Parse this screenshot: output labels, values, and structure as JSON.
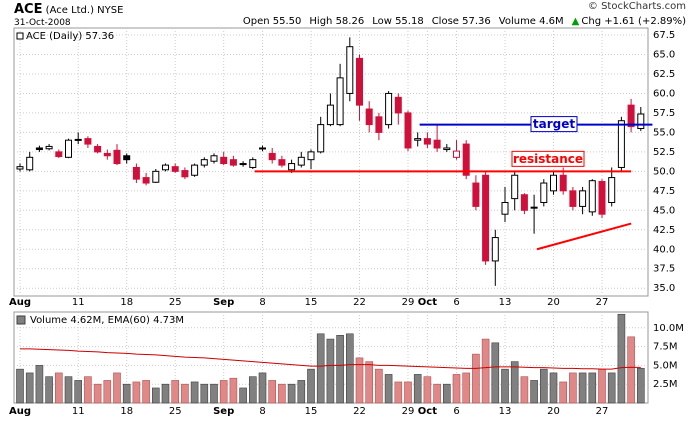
{
  "header": {
    "symbol": "ACE",
    "name": "(Ace Ltd.) NYSE",
    "date": "31-Oct-2008",
    "stats": [
      "Open 55.50",
      "High 58.26",
      "Low 55.18",
      "Close 57.36",
      "Volume 4.6M"
    ],
    "change": "Chg +1.61 (+2.89%)",
    "credit": "© StockCharts.com"
  },
  "chart_data": {
    "type": "candlestick",
    "legend": "ACE (Daily) 57.36",
    "categories": [
      "Aug",
      null,
      null,
      null,
      null,
      null,
      "11",
      null,
      null,
      null,
      null,
      "18",
      null,
      null,
      null,
      null,
      "25",
      null,
      null,
      null,
      null,
      "Sep",
      null,
      null,
      null,
      "8",
      null,
      null,
      null,
      null,
      "15",
      null,
      null,
      null,
      null,
      "22",
      null,
      null,
      null,
      null,
      "29",
      null,
      "Oct",
      null,
      null,
      "6",
      null,
      null,
      null,
      null,
      "13",
      null,
      null,
      null,
      null,
      "20",
      null,
      null,
      null,
      null,
      "27",
      null,
      null,
      null,
      null
    ],
    "open": [
      50.3,
      50.2,
      53.0,
      52.9,
      52.5,
      51.8,
      54.0,
      54.2,
      53.2,
      52.3,
      52.7,
      52.0,
      50.5,
      49.2,
      48.6,
      50.2,
      50.6,
      50.1,
      49.5,
      50.8,
      51.3,
      51.8,
      51.5,
      51.0,
      50.5,
      52.9,
      52.3,
      51.5,
      50.2,
      50.8,
      51.5,
      52.5,
      56.0,
      56.0,
      60.0,
      64.5,
      58.0,
      57.0,
      56.0,
      59.5,
      57.5,
      54.0,
      54.2,
      54.0,
      52.8,
      51.8,
      53.5,
      48.5,
      49.5,
      38.5,
      44.5,
      46.5,
      47.0,
      45.3,
      46.0,
      47.5,
      49.5,
      47.5,
      45.5,
      44.8,
      48.7,
      46.0,
      50.5,
      58.5,
      55.5
    ],
    "high": [
      51.0,
      52.5,
      53.3,
      53.5,
      52.8,
      54.2,
      55.0,
      54.5,
      53.5,
      52.8,
      53.5,
      52.3,
      51.0,
      49.8,
      50.3,
      51.0,
      51.0,
      50.5,
      51.0,
      51.8,
      52.3,
      52.5,
      52.0,
      51.3,
      51.8,
      53.3,
      53.0,
      52.0,
      51.5,
      52.5,
      52.8,
      57.0,
      60.0,
      63.8,
      67.2,
      65.0,
      59.0,
      57.5,
      60.3,
      60.0,
      57.8,
      55.0,
      55.0,
      56.0,
      53.5,
      54.0,
      54.0,
      49.5,
      50.0,
      42.5,
      48.0,
      50.0,
      47.2,
      47.0,
      49.0,
      50.0,
      50.5,
      48.0,
      48.0,
      49.0,
      49.0,
      50.5,
      57.0,
      59.3,
      58.26
    ],
    "low": [
      50.0,
      50.0,
      52.5,
      52.7,
      51.7,
      51.7,
      53.5,
      53.0,
      52.3,
      51.5,
      50.8,
      51.0,
      48.5,
      48.2,
      48.5,
      50.0,
      49.8,
      49.0,
      49.3,
      50.5,
      51.0,
      50.8,
      50.6,
      50.6,
      50.3,
      52.6,
      51.0,
      50.5,
      49.8,
      50.5,
      50.3,
      52.3,
      55.8,
      55.8,
      59.0,
      56.5,
      55.0,
      54.0,
      55.5,
      56.0,
      52.6,
      53.2,
      53.0,
      52.5,
      52.5,
      51.5,
      49.0,
      45.0,
      38.0,
      35.3,
      43.5,
      45.0,
      44.5,
      42.0,
      45.5,
      47.0,
      47.0,
      45.0,
      44.5,
      44.3,
      44.0,
      45.5,
      50.0,
      55.0,
      55.18
    ],
    "close": [
      50.6,
      51.8,
      52.8,
      53.2,
      51.9,
      54.0,
      54.1,
      53.5,
      52.5,
      52.0,
      51.0,
      51.5,
      49.0,
      48.5,
      50.0,
      50.8,
      50.0,
      49.3,
      50.8,
      51.5,
      52.0,
      51.0,
      50.8,
      50.9,
      51.5,
      53.0,
      51.5,
      50.8,
      51.0,
      51.8,
      52.5,
      56.0,
      58.5,
      62.0,
      66.0,
      58.5,
      56.0,
      55.0,
      60.0,
      57.5,
      53.0,
      54.2,
      53.5,
      53.0,
      53.0,
      52.6,
      49.5,
      45.5,
      38.5,
      41.5,
      46.0,
      49.5,
      45.0,
      45.4,
      48.5,
      49.5,
      47.5,
      45.5,
      47.5,
      48.8,
      44.5,
      49.2,
      56.5,
      55.75,
      57.36
    ],
    "up_color": "#000000",
    "down_color": "#d0103a",
    "ylim": [
      34,
      68.4
    ],
    "yticks": [
      {
        "value": 35,
        "label": "35.0"
      },
      37.5,
      {
        "value": 40,
        "label": "40.0"
      },
      42.5,
      {
        "value": 45,
        "label": "45.0"
      },
      47.5,
      {
        "value": 50,
        "label": "50.0"
      },
      52.5,
      {
        "value": 55,
        "label": "55.0"
      },
      57.5,
      {
        "value": 60,
        "label": "60.0"
      },
      62.5,
      {
        "value": 65,
        "label": "65.0"
      },
      67.5
    ],
    "grid": true,
    "annotations": {
      "target": {
        "text": "target",
        "y": 56,
        "x": [
          41.2,
          65.2
        ],
        "color": "#0000cc"
      },
      "resistance": {
        "text": "resistance",
        "y": 50,
        "x": [
          24.2,
          63
        ],
        "color": "#ff0000"
      },
      "trend_line": {
        "x": [
          53.3,
          63
        ],
        "y": [
          40.0,
          43.3
        ],
        "color": "#ff0000"
      }
    },
    "volume": {
      "legend": "Volume 4.62M, EMA(60) 4.73M",
      "values": [
        4.5,
        4.0,
        5.0,
        3.5,
        4.0,
        3.5,
        3.0,
        3.5,
        2.5,
        3.0,
        4.0,
        2.5,
        2.8,
        3.0,
        2.0,
        2.5,
        3.0,
        2.5,
        2.8,
        2.5,
        2.5,
        3.0,
        3.3,
        2.0,
        3.5,
        4.0,
        3.0,
        2.5,
        2.5,
        3.0,
        4.5,
        9.2,
        8.5,
        9.0,
        9.2,
        6.0,
        5.5,
        4.5,
        3.8,
        2.8,
        2.8,
        3.8,
        3.5,
        2.5,
        2.5,
        3.8,
        4.0,
        6.5,
        8.5,
        8.0,
        4.5,
        5.5,
        3.5,
        3.0,
        4.5,
        4.0,
        2.8,
        4.0,
        4.0,
        4.0,
        4.5,
        4.0,
        11.8,
        8.8,
        4.62
      ],
      "ema": [
        7.2,
        7.2,
        7.15,
        7.1,
        7.05,
        7.0,
        6.9,
        6.85,
        6.8,
        6.7,
        6.65,
        6.6,
        6.5,
        6.45,
        6.4,
        6.3,
        6.2,
        6.1,
        6.05,
        6.0,
        5.9,
        5.8,
        5.7,
        5.6,
        5.5,
        5.4,
        5.3,
        5.2,
        5.1,
        5.0,
        4.9,
        4.9,
        5.0,
        5.0,
        5.1,
        5.1,
        5.1,
        5.0,
        5.0,
        4.95,
        4.9,
        4.85,
        4.8,
        4.75,
        4.7,
        4.65,
        4.6,
        4.6,
        4.7,
        4.8,
        4.8,
        4.8,
        4.75,
        4.7,
        4.7,
        4.65,
        4.6,
        4.6,
        4.55,
        4.55,
        4.5,
        4.5,
        4.7,
        4.75,
        4.73
      ],
      "up_color": "#808080",
      "down_color": "#e08888",
      "ema_color": "#cc0000",
      "ylim": [
        0,
        12.1
      ],
      "yticks": [
        {
          "value": 2.5,
          "label": "2.5M"
        },
        {
          "value": 5,
          "label": "5.0M"
        },
        {
          "value": 7.5,
          "label": "7.5M"
        },
        {
          "value": 10,
          "label": "10.0M"
        }
      ]
    }
  }
}
